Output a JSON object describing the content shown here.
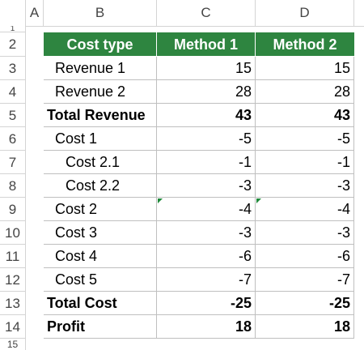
{
  "column_headers": [
    "A",
    "B",
    "C",
    "D"
  ],
  "row_numbers": [
    "1",
    "2",
    "3",
    "4",
    "5",
    "6",
    "7",
    "8",
    "9",
    "10",
    "11",
    "12",
    "13",
    "14",
    "15"
  ],
  "table": {
    "header": [
      "Cost type",
      "Method 1",
      "Method 2"
    ],
    "header_color": "#2e8540",
    "rows": [
      {
        "label": "Revenue 1",
        "m1": "15",
        "m2": "15"
      },
      {
        "label": "Revenue 2",
        "m1": "28",
        "m2": "28"
      },
      {
        "label": "Total Revenue",
        "m1": "43",
        "m2": "43"
      },
      {
        "label": "Cost 1",
        "m1": "-5",
        "m2": "-5"
      },
      {
        "label": "Cost 2.1",
        "m1": "-1",
        "m2": "-1"
      },
      {
        "label": "Cost 2.2",
        "m1": "-3",
        "m2": "-3"
      },
      {
        "label": "Cost 2",
        "m1": "-4",
        "m2": "-4"
      },
      {
        "label": "Cost 3",
        "m1": "-3",
        "m2": "-3"
      },
      {
        "label": "Cost 4",
        "m1": "-6",
        "m2": "-6"
      },
      {
        "label": "Cost 5",
        "m1": "-7",
        "m2": "-7"
      },
      {
        "label": "Total Cost",
        "m1": "-25",
        "m2": "-25"
      },
      {
        "label": "Profit",
        "m1": "18",
        "m2": "18"
      }
    ]
  }
}
